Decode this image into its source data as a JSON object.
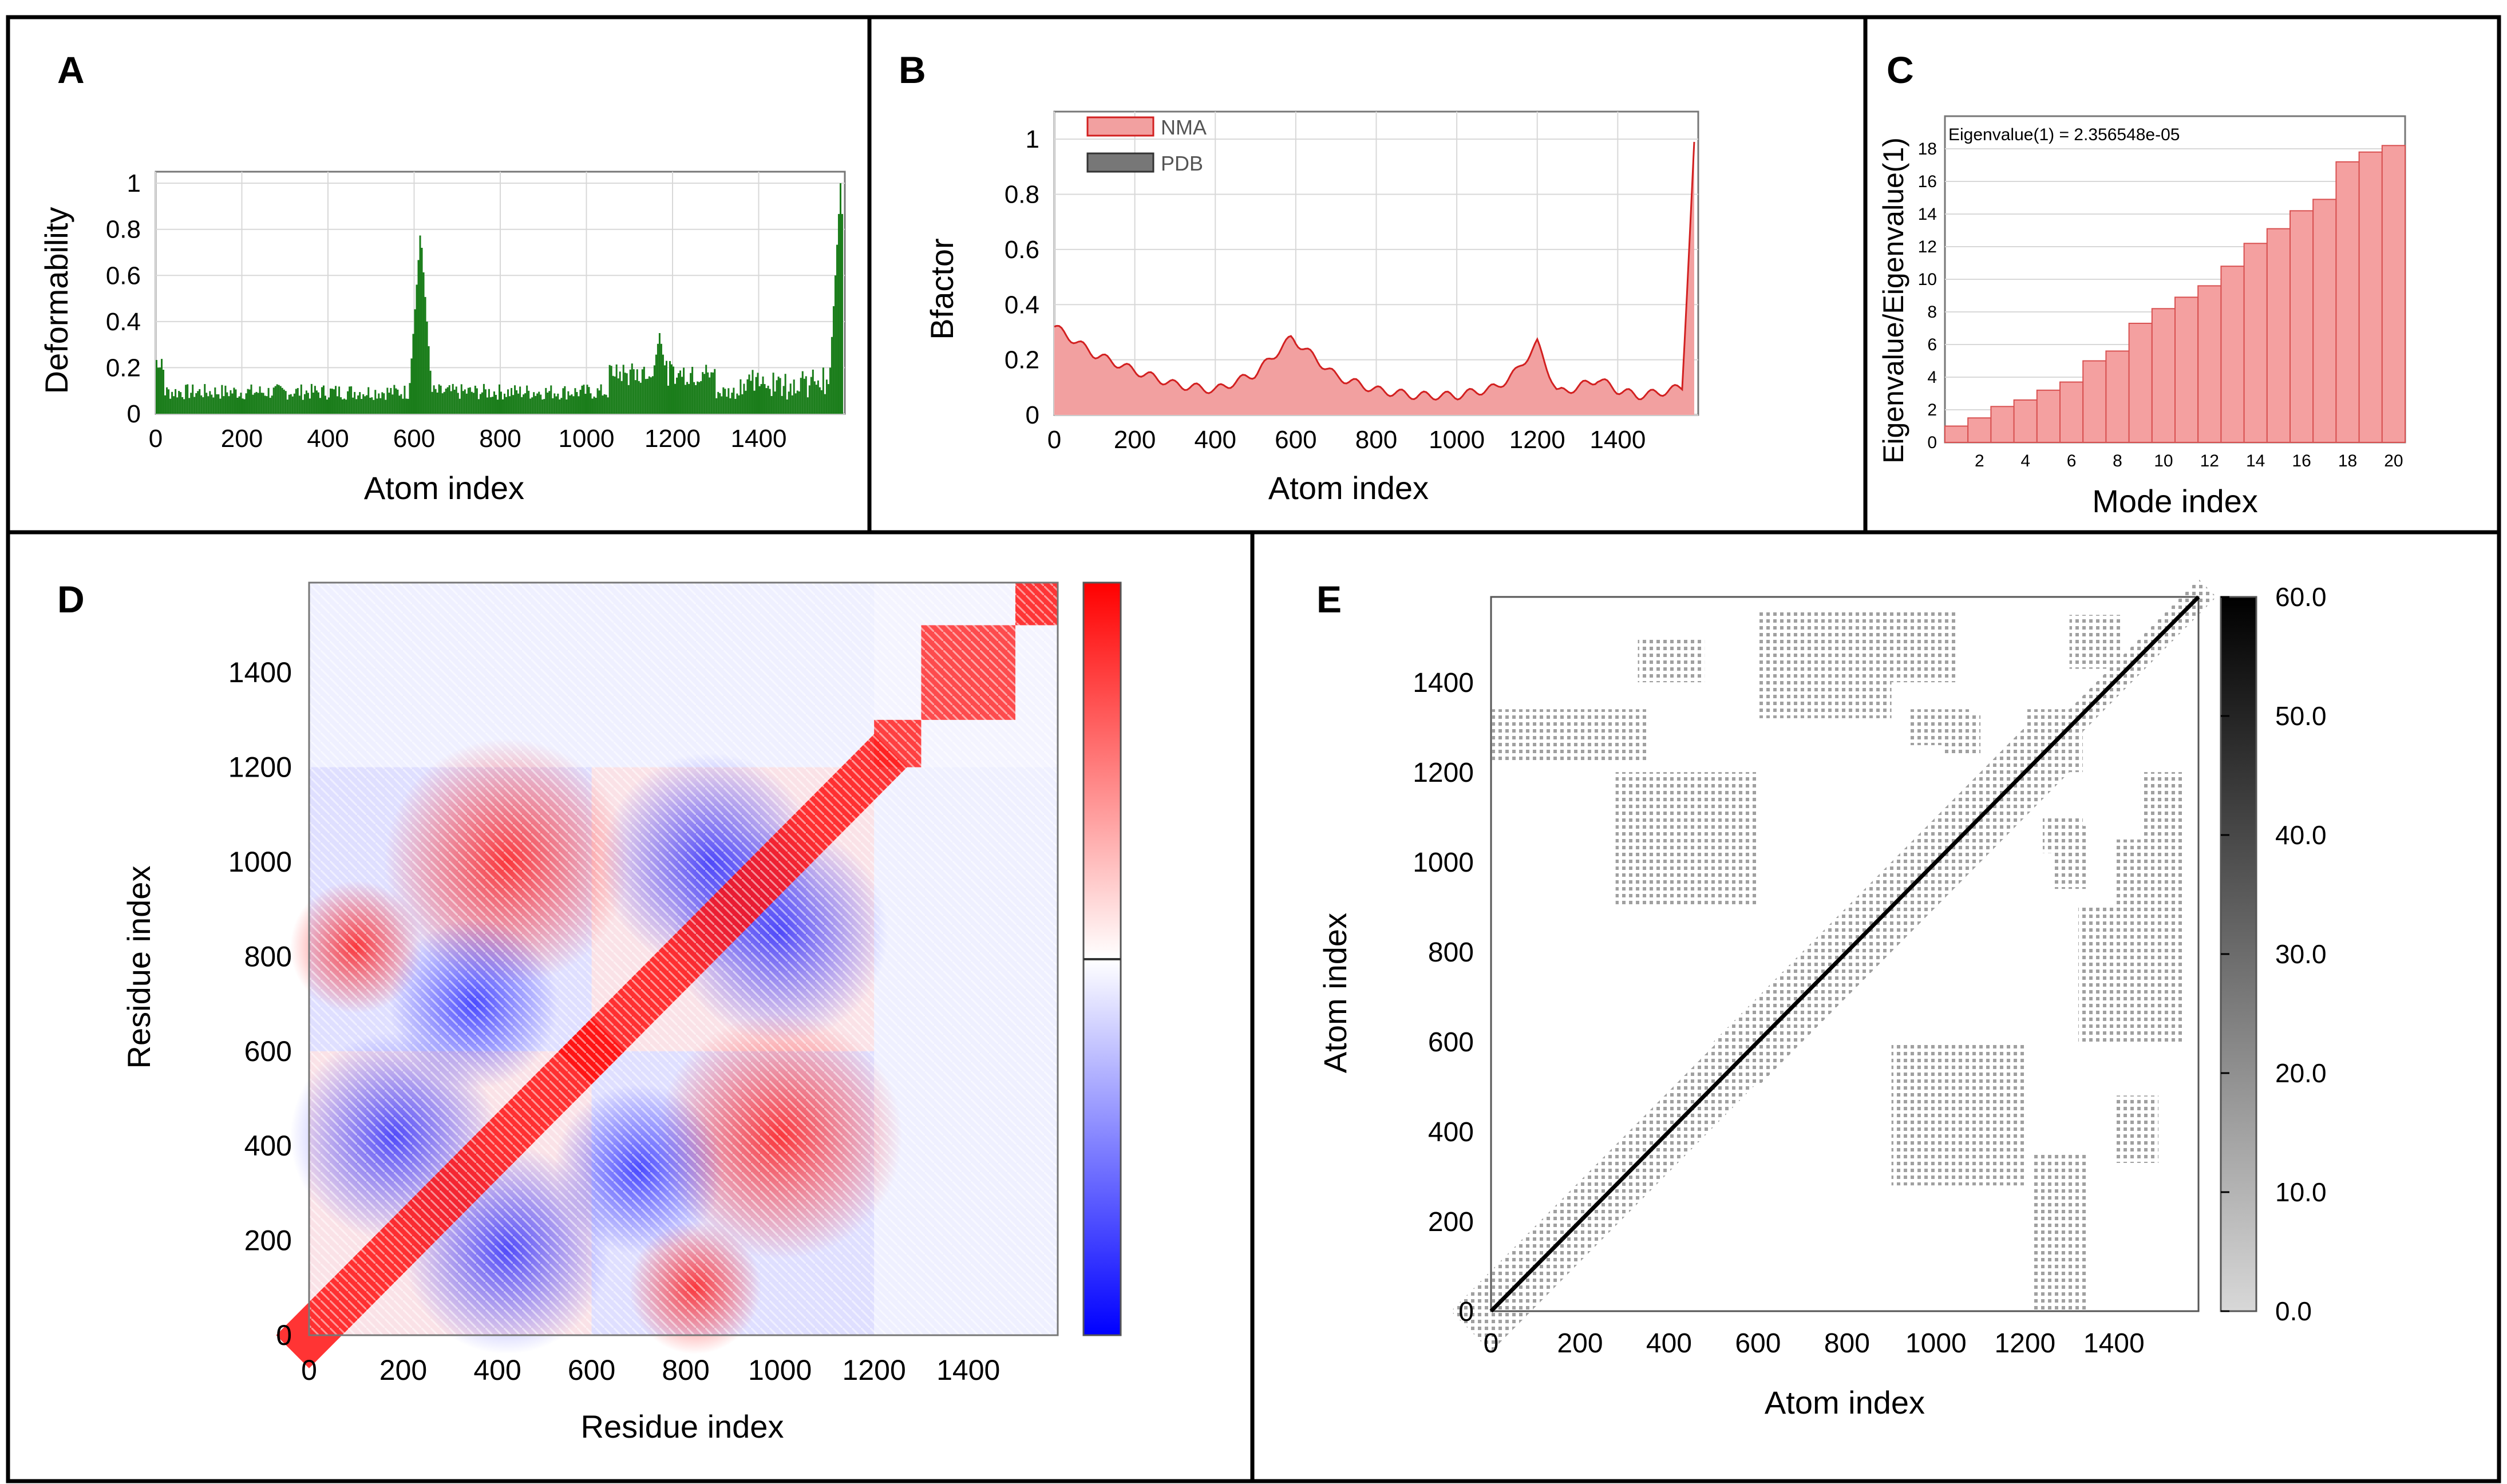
{
  "colors": {
    "deformability": "#1a7d1a",
    "nma_fill": "#f2a0a0",
    "nma_line": "#d22020",
    "eigen_bar": "#f4a0a0",
    "eigen_edge": "#d85050",
    "cov_pos": "#ff0000",
    "cov_neg": "#0000ff",
    "gray": "#a0a0a0",
    "frame": "#000000"
  },
  "chart_data": [
    {
      "panel": "A",
      "type": "area",
      "xlabel": "Atom index",
      "ylabel": "Deformability",
      "xlim": [
        0,
        1600
      ],
      "ylim": [
        0,
        1.05
      ],
      "xticks": [
        "0",
        "200",
        "400",
        "600",
        "800",
        "1000",
        "1200",
        "1400"
      ],
      "yticks": [
        "0",
        "0.2",
        "0.4",
        "0.6",
        "0.8",
        "1"
      ],
      "peaks": [
        {
          "x": 0,
          "y": 0.25
        },
        {
          "x": 615,
          "y": 0.8
        },
        {
          "x": 1170,
          "y": 0.35
        },
        {
          "x": 1590,
          "y": 1.0
        }
      ],
      "baseline": 0.06
    },
    {
      "panel": "B",
      "type": "area",
      "xlabel": "Atom index",
      "ylabel": "Bfactor",
      "xlim": [
        0,
        1600
      ],
      "ylim": [
        0,
        1.1
      ],
      "xticks": [
        "0",
        "200",
        "400",
        "600",
        "800",
        "1000",
        "1200",
        "1400"
      ],
      "yticks": [
        "0",
        "0.2",
        "0.4",
        "0.6",
        "0.8",
        "1"
      ],
      "legend": [
        "NMA",
        "PDB"
      ],
      "series": [
        {
          "name": "NMA",
          "x": [
            0,
            100,
            200,
            300,
            400,
            500,
            590,
            700,
            800,
            900,
            1000,
            1100,
            1150,
            1200,
            1250,
            1300,
            1350,
            1400,
            1450,
            1500,
            1560,
            1590
          ],
          "values": [
            0.32,
            0.22,
            0.16,
            0.11,
            0.09,
            0.15,
            0.28,
            0.14,
            0.09,
            0.07,
            0.07,
            0.1,
            0.16,
            0.26,
            0.08,
            0.1,
            0.13,
            0.09,
            0.07,
            0.08,
            0.1,
            0.98
          ]
        }
      ]
    },
    {
      "panel": "C",
      "type": "bar",
      "xlabel": "Mode index",
      "ylabel": "Eigenvalue/Eigenvalue(1)",
      "annotation": "Eigenvalue(1) = 2.356548e-05",
      "xlim": [
        1,
        21
      ],
      "ylim": [
        0,
        20
      ],
      "xticks": [
        "2",
        "4",
        "6",
        "8",
        "10",
        "12",
        "14",
        "16",
        "18",
        "20"
      ],
      "yticks": [
        "0",
        "2",
        "4",
        "6",
        "8",
        "10",
        "12",
        "14",
        "16",
        "18"
      ],
      "categories": [
        1,
        2,
        3,
        4,
        5,
        6,
        7,
        8,
        9,
        10,
        11,
        12,
        13,
        14,
        15,
        16,
        17,
        18,
        19,
        20
      ],
      "values": [
        1,
        1.5,
        2.2,
        2.6,
        3.2,
        3.7,
        5,
        5.6,
        7.3,
        8.2,
        8.9,
        9.6,
        10.8,
        12.2,
        13.1,
        14.2,
        14.9,
        17.2,
        17.8,
        18.2
      ]
    },
    {
      "panel": "D",
      "type": "heatmap",
      "xlabel": "Residue index",
      "ylabel": "Residue index",
      "xlim": [
        0,
        1590
      ],
      "ylim": [
        0,
        1590
      ],
      "xticks": [
        "0",
        "200",
        "400",
        "600",
        "800",
        "1000",
        "1200",
        "1400"
      ],
      "yticks": [
        "0",
        "200",
        "400",
        "600",
        "800",
        "1000",
        "1200",
        "1400"
      ],
      "colormap": "blue-white-red",
      "domains": [
        [
          0,
          600
        ],
        [
          600,
          1200
        ],
        [
          1200,
          1300
        ],
        [
          1300,
          1500
        ],
        [
          1500,
          1590
        ]
      ]
    },
    {
      "panel": "E",
      "type": "heatmap",
      "xlabel": "Atom index",
      "ylabel": "Atom index",
      "xlim": [
        0,
        1590
      ],
      "ylim": [
        0,
        1590
      ],
      "xticks": [
        "0",
        "200",
        "400",
        "600",
        "800",
        "1000",
        "1200",
        "1400"
      ],
      "yticks": [
        "0",
        "200",
        "400",
        "600",
        "800",
        "1000",
        "1200",
        "1400"
      ],
      "colorbar_ticks": [
        "0.0",
        "10.0",
        "20.0",
        "30.0",
        "40.0",
        "50.0",
        "60.0"
      ],
      "colorbar_range": [
        0,
        60
      ]
    }
  ]
}
